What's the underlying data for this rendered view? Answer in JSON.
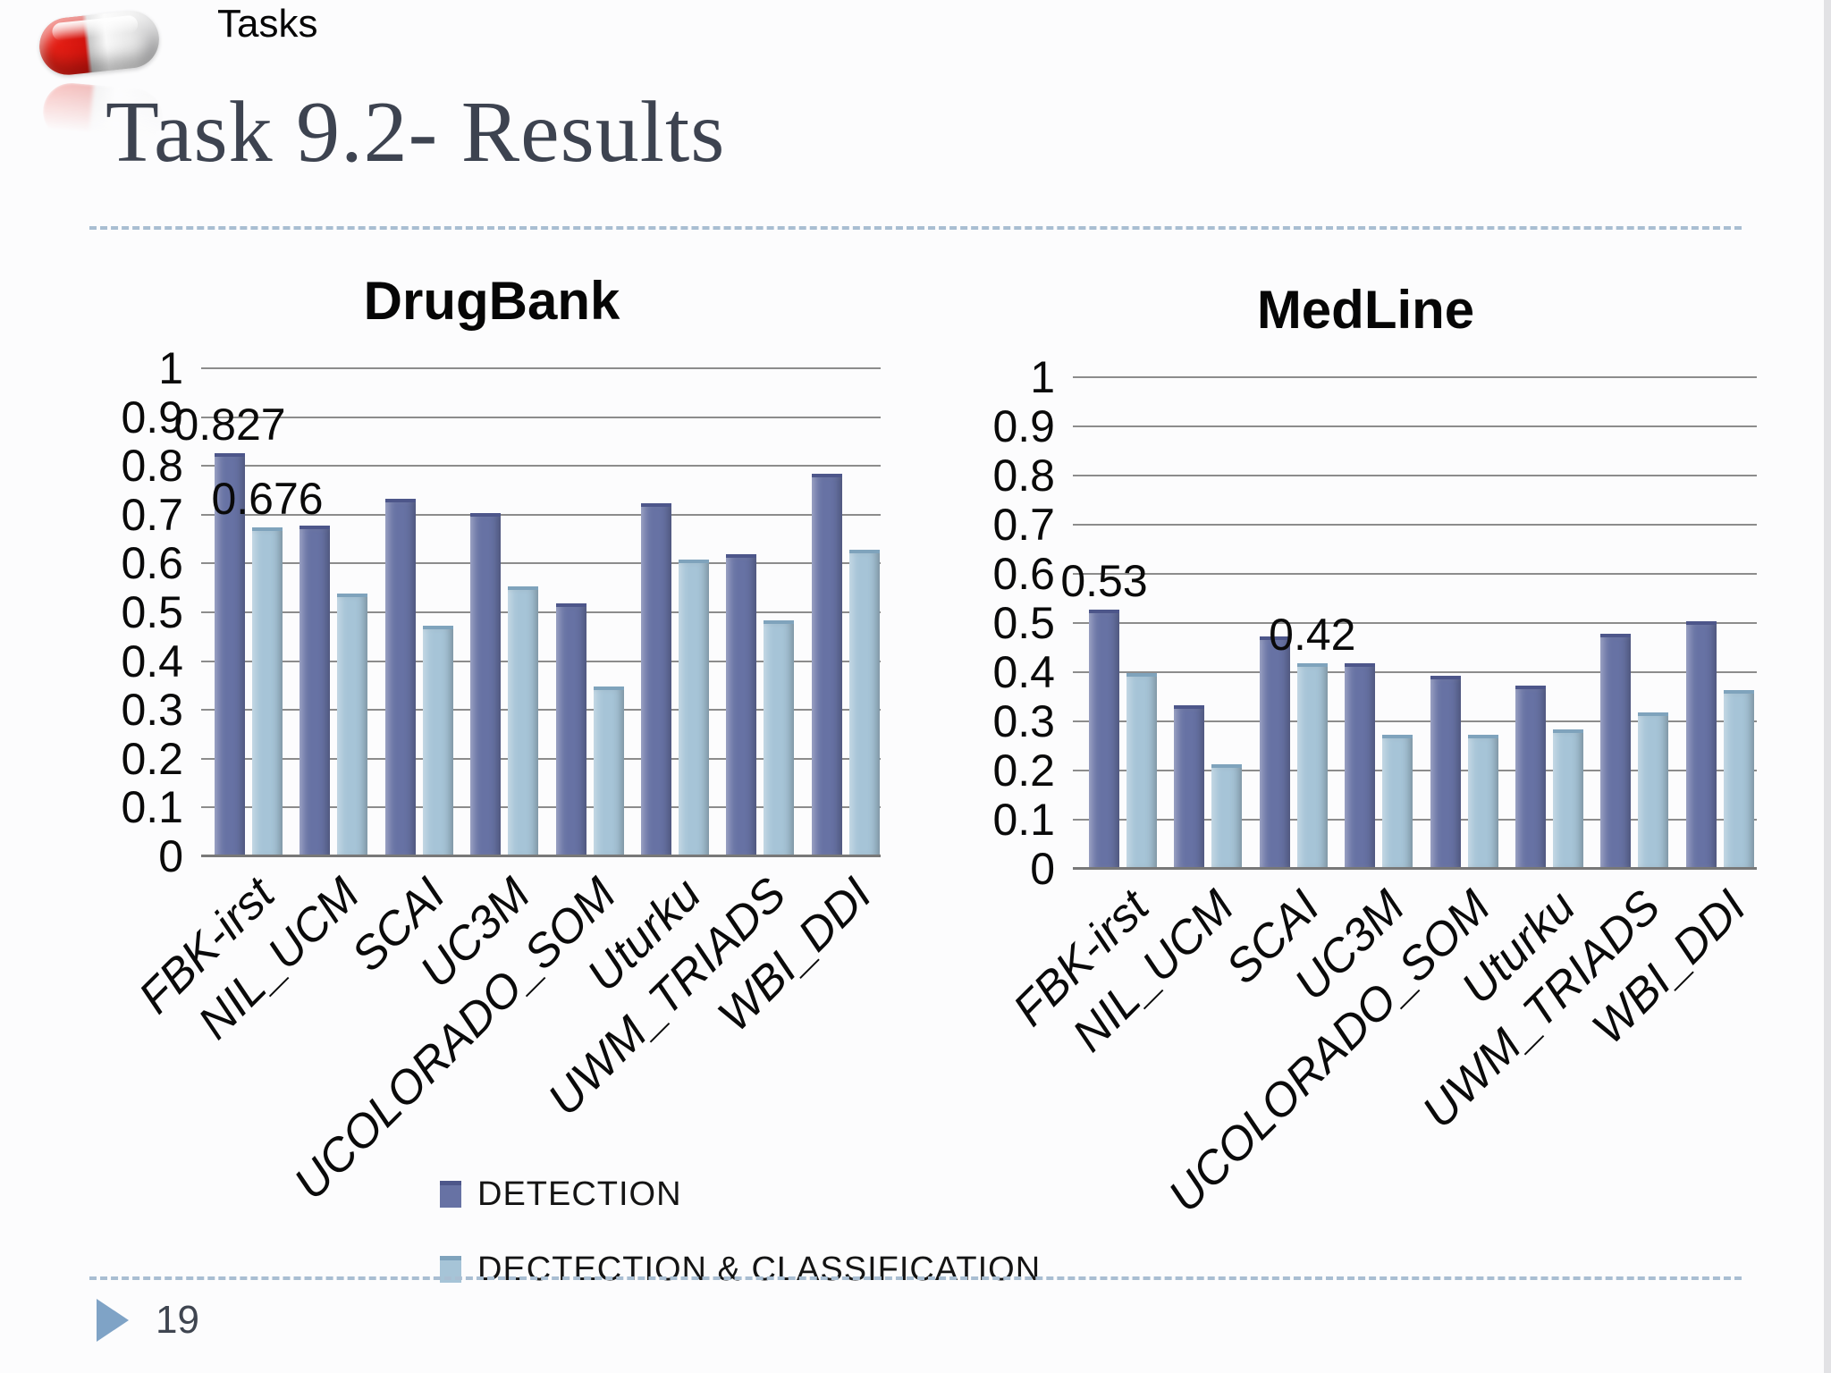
{
  "header": {
    "tasks_label": "Tasks",
    "title": "Task 9.2- Results"
  },
  "footer": {
    "page_number": "19"
  },
  "legend": {
    "items": [
      {
        "label": "DETECTION",
        "color": "#6772a4",
        "edge": "#4d568a"
      },
      {
        "label": "DECTECTION & CLASSIFICATION",
        "color": "#a6c4d7",
        "edge": "#7fa3bc"
      }
    ]
  },
  "colors": {
    "gridline": "#8c8c8c",
    "axis": "#787878",
    "divider": "#a9bed2",
    "bullet": "#7fa3c6",
    "title_text": "#3d4350"
  },
  "chart_data": [
    {
      "type": "bar",
      "title": "DrugBank",
      "categories": [
        "FBK-irst",
        "NIL_UCM",
        "SCAI",
        "UC3M",
        "UCOLORADO_SOM",
        "Uturku",
        "UWM_TRIADS",
        "WBI_DDI"
      ],
      "series": [
        {
          "name": "DETECTION",
          "color": "#6772a4",
          "edge": "#4d568a",
          "values": [
            0.827,
            0.68,
            0.735,
            0.705,
            0.52,
            0.725,
            0.62,
            0.785
          ]
        },
        {
          "name": "DECTECTION & CLASSIFICATION",
          "color": "#a6c4d7",
          "edge": "#7fa3bc",
          "values": [
            0.676,
            0.54,
            0.475,
            0.555,
            0.35,
            0.61,
            0.485,
            0.63
          ]
        }
      ],
      "xlabel": "",
      "ylabel": "",
      "ylim": [
        0,
        1
      ],
      "yticks": [
        "1",
        "0.9",
        "0.8",
        "0.7",
        "0.6",
        "0.5",
        "0.4",
        "0.3",
        "0.2",
        "0.1",
        "0"
      ],
      "grid": true,
      "legend_position": "below-left",
      "callouts": [
        {
          "text": "0.827",
          "series": 0,
          "category": 0
        },
        {
          "text": "0.676",
          "series": 1,
          "category": 0
        }
      ]
    },
    {
      "type": "bar",
      "title": "MedLine",
      "categories": [
        "FBK-irst",
        "NIL_UCM",
        "SCAI",
        "UC3M",
        "UCOLORADO_SOM",
        "Uturku",
        "UWM_TRIADS",
        "WBI_DDI"
      ],
      "series": [
        {
          "name": "DETECTION",
          "color": "#6772a4",
          "edge": "#4d568a",
          "values": [
            0.53,
            0.335,
            0.475,
            0.42,
            0.395,
            0.375,
            0.48,
            0.505
          ]
        },
        {
          "name": "DECTECTION & CLASSIFICATION",
          "color": "#a6c4d7",
          "edge": "#7fa3bc",
          "values": [
            0.4,
            0.215,
            0.42,
            0.275,
            0.275,
            0.285,
            0.32,
            0.365
          ]
        }
      ],
      "xlabel": "",
      "ylabel": "",
      "ylim": [
        0,
        1
      ],
      "yticks": [
        "1",
        "0.9",
        "0.8",
        "0.7",
        "0.6",
        "0.5",
        "0.4",
        "0.3",
        "0.2",
        "0.1",
        "0"
      ],
      "grid": true,
      "legend_position": "shared",
      "callouts": [
        {
          "text": "0.53",
          "series": 0,
          "category": 0
        },
        {
          "text": "0.42",
          "series": 1,
          "category": 2
        }
      ]
    }
  ]
}
